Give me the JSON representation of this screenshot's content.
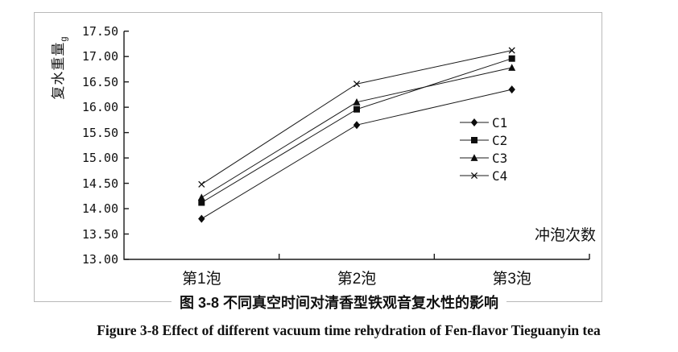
{
  "figure": {
    "caption_zh": "图 3-8  不同真空时间对清香型铁观音复水性的影响",
    "caption_en": "Figure 3-8 Effect of different vacuum time rehydration of Fen-flavor Tieguanyin tea"
  },
  "chart_data": {
    "type": "line",
    "categories": [
      "第1泡",
      "第2泡",
      "第3泡"
    ],
    "series": [
      {
        "name": "C1",
        "marker": "diamond",
        "values": [
          13.8,
          15.65,
          16.35
        ]
      },
      {
        "name": "C2",
        "marker": "square",
        "values": [
          14.12,
          15.96,
          16.96
        ]
      },
      {
        "name": "C3",
        "marker": "triangle",
        "values": [
          14.22,
          16.1,
          16.78
        ]
      },
      {
        "name": "C4",
        "marker": "x",
        "values": [
          14.48,
          16.46,
          17.12
        ]
      }
    ],
    "xlabel": "冲泡次数",
    "ylabel": "复水重量",
    "ylabel_unit": "g",
    "ylim": [
      13.0,
      17.5
    ],
    "ytick_step": 0.5,
    "ytick_labels": [
      "17.50",
      "17.00",
      "16.50",
      "16.00",
      "15.50",
      "15.00",
      "14.50",
      "14.00",
      "13.50",
      "13.00"
    ],
    "legend_entries": [
      "C1",
      "C2",
      "C3",
      "C4"
    ],
    "legend_position": "middle-right",
    "grid": false,
    "line_color": "#1a1a1a",
    "marker_color": "#0d0d0d",
    "frame_color": "#b9b9b9",
    "background": "#ffffff"
  }
}
